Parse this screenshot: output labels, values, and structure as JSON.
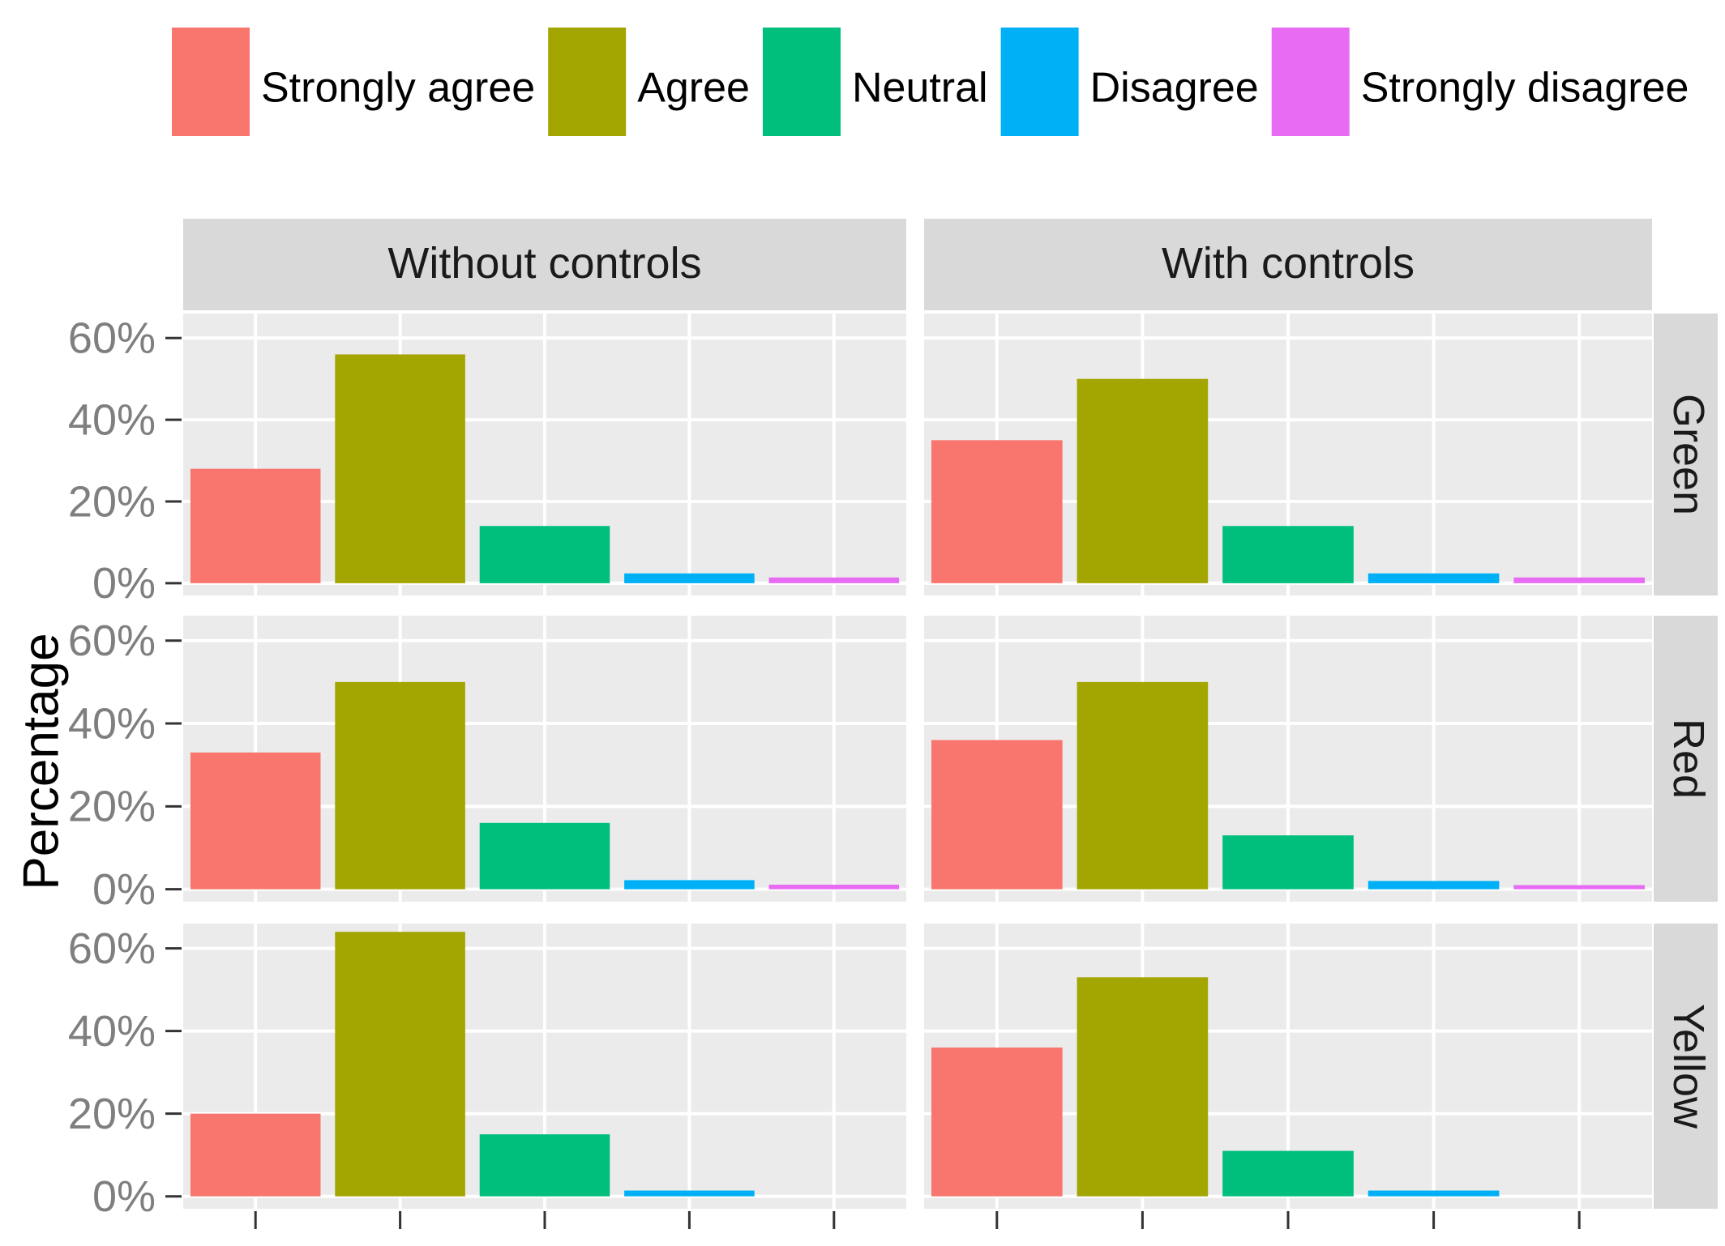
{
  "chart_data": {
    "type": "bar",
    "y_label": "Percentage",
    "columns": [
      "Without controls",
      "With controls"
    ],
    "categories": [
      null,
      null,
      null,
      null,
      null
    ],
    "series": [
      {
        "name": "Strongly agree",
        "color": "#F8766D"
      },
      {
        "name": "Agree",
        "color": "#A3A500"
      },
      {
        "name": "Neutral",
        "color": "#00BF7D"
      },
      {
        "name": "Disagree",
        "color": "#00B0F6"
      },
      {
        "name": "Strongly disagree",
        "color": "#E76BF3"
      }
    ],
    "rows": [
      {
        "name": "Green",
        "panels": [
          [
            28,
            56,
            14,
            2.4,
            1.4
          ],
          [
            35,
            50,
            14,
            2.4,
            1.4
          ]
        ]
      },
      {
        "name": "Red",
        "panels": [
          [
            33,
            50,
            16,
            2.2,
            1.1
          ],
          [
            36,
            50,
            13,
            2,
            1
          ]
        ]
      },
      {
        "name": "Yellow",
        "panels": [
          [
            20,
            64,
            15,
            1.4,
            0
          ],
          [
            36,
            53,
            11,
            1.4,
            0
          ]
        ]
      }
    ],
    "ylim": [
      -3,
      66
    ],
    "yticks": [
      {
        "value": 0,
        "label": "0%"
      },
      {
        "value": 20,
        "label": "20%"
      },
      {
        "value": 40,
        "label": "40%"
      },
      {
        "value": 60,
        "label": "60%"
      }
    ],
    "grid": true
  }
}
